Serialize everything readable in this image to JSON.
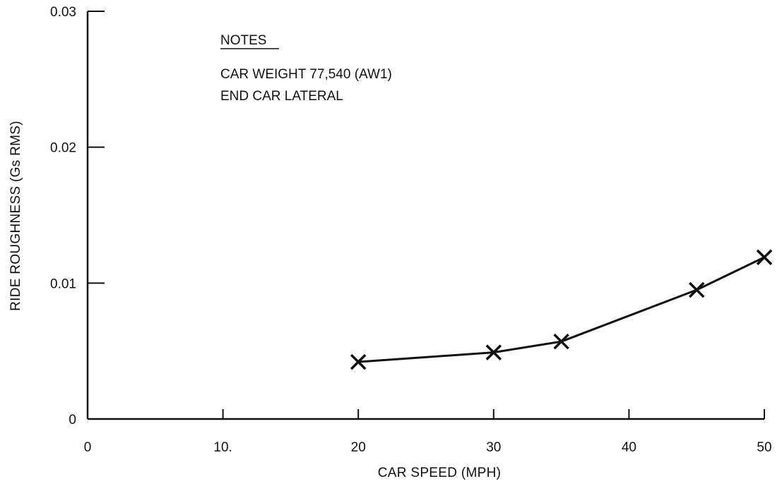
{
  "chart_data": {
    "type": "line",
    "title": "",
    "xlabel": "CAR SPEED (MPH)",
    "ylabel": "RIDE ROUGHNESS (Gs RMS)",
    "xlim": [
      0,
      50
    ],
    "ylim": [
      0,
      0.03
    ],
    "x_ticks": [
      0,
      10,
      20,
      30,
      40,
      50
    ],
    "x_tick_labels": [
      "0",
      "10.",
      "20",
      "30",
      "40",
      "50"
    ],
    "y_ticks": [
      0,
      0.01,
      0.02,
      0.03
    ],
    "y_tick_labels": [
      "0",
      "0.01",
      "0.02",
      "0.03"
    ],
    "grid": false,
    "marker": "x",
    "line_color": "#111111",
    "x": [
      20,
      30,
      35,
      45,
      50
    ],
    "y": [
      0.0042,
      0.0049,
      0.0057,
      0.0095,
      0.0119
    ],
    "annotations": {
      "heading": "NOTES",
      "lines": [
        "CAR WEIGHT 77,540 (AW1)",
        "END CAR LATERAL"
      ]
    }
  }
}
